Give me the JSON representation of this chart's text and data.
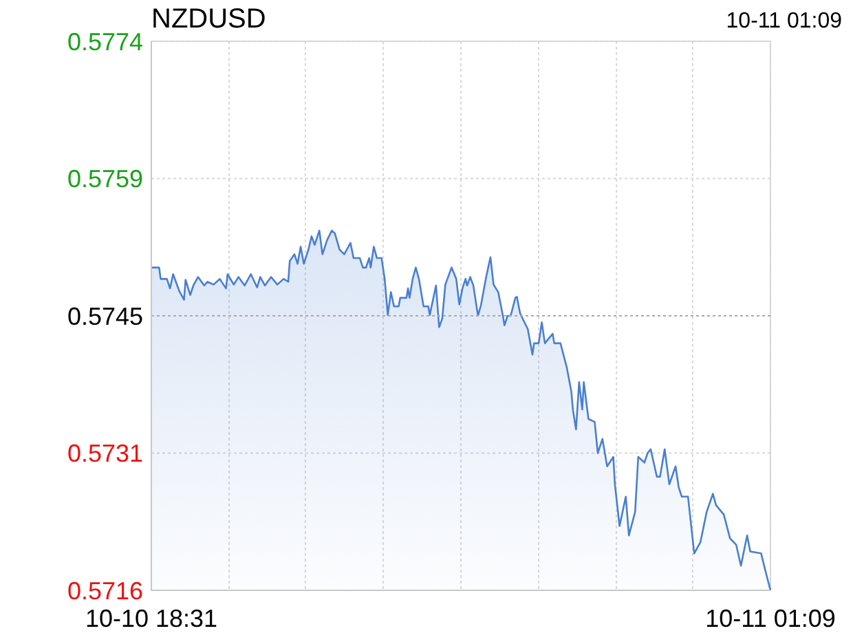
{
  "chart_data": {
    "type": "area",
    "title": "NZDUSD",
    "annotations": [
      "10-11 01:09"
    ],
    "x": [
      "--10-10T18:31",
      "--10-10T18:36",
      "--10-10T18:37",
      "--10-10T18:41",
      "--10-10T18:43",
      "--10-10T18:45",
      "--10-10T18:49",
      "--10-10T18:52",
      "--10-10T18:53",
      "--10-10T18:56",
      "--10-10T18:58",
      "--10-10T19:01",
      "--10-10T19:05",
      "--10-10T19:07",
      "--10-10T19:11",
      "--10-10T19:15",
      "--10-10T19:19",
      "--10-10T19:20",
      "--10-10T19:24",
      "--10-10T19:27",
      "--10-10T19:31",
      "--10-10T19:35",
      "--10-10T19:39",
      "--10-10T19:41",
      "--10-10T19:44",
      "--10-10T19:48",
      "--10-10T19:52",
      "--10-10T19:56",
      "--10-10T19:59",
      "--10-10T20:00",
      "--10-10T20:03",
      "--10-10T20:05",
      "--10-10T20:07",
      "--10-10T20:09",
      "--10-10T20:12",
      "--10-10T20:14",
      "--10-10T20:16",
      "--10-10T20:19",
      "--10-10T20:21",
      "--10-10T20:24",
      "--10-10T20:27",
      "--10-10T20:29",
      "--10-10T20:32",
      "--10-10T20:35",
      "--10-10T20:39",
      "--10-10T20:41",
      "--10-10T20:45",
      "--10-10T20:47",
      "--10-10T20:49",
      "--10-10T20:51",
      "--10-10T20:52",
      "--10-10T20:54",
      "--10-10T20:56",
      "--10-10T20:59",
      "--10-10T21:01",
      "--10-10T21:03",
      "--10-10T21:05",
      "--10-10T21:07",
      "--10-10T21:10",
      "--10-10T21:11",
      "--10-10T21:15",
      "--10-10T21:16",
      "--10-10T21:17",
      "--10-10T21:19",
      "--10-10T21:21",
      "--10-10T21:23",
      "--10-10T21:26",
      "--10-10T21:29",
      "--10-10T21:30",
      "--10-10T21:34",
      "--10-10T21:36",
      "--10-10T21:38",
      "--10-10T21:40",
      "--10-10T21:44",
      "--10-10T21:47",
      "--10-10T21:49",
      "--10-10T21:51",
      "--10-10T21:53",
      "--10-10T21:54",
      "--10-10T21:56",
      "--10-10T21:58",
      "--10-10T22:01",
      "--10-10T22:03",
      "--10-10T22:06",
      "--10-10T22:09",
      "--10-10T22:11",
      "--10-10T22:14",
      "--10-10T22:17",
      "--10-10T22:18",
      "--10-10T22:20",
      "--10-10T22:22",
      "--10-10T22:25",
      "--10-10T22:26",
      "--10-10T22:28",
      "--10-10T22:30",
      "--10-10T22:33",
      "--10-10T22:36",
      "--10-10T22:37",
      "--10-10T22:40",
      "--10-10T22:42",
      "--10-10T22:44",
      "--10-10T22:49",
      "--10-10T22:50",
      "--10-10T22:54",
      "--10-10T22:58",
      "--10-10T23:01",
      "--10-10T23:02",
      "--10-10T23:04",
      "--10-10T23:06",
      "--10-10T23:08",
      "--10-10T23:09",
      "--10-10T23:12",
      "--10-10T23:16",
      "--10-10T23:18",
      "--10-10T23:21",
      "--10-10T23:24",
      "--10-10T23:28",
      "--10-10T23:29",
      "--10-10T23:32",
      "--10-10T23:36",
      "--10-10T23:38",
      "--10-10T23:42",
      "--10-10T23:44",
      "--10-10T23:48",
      "--10-10T23:50",
      "--10-10T23:52",
      "--10-10T23:56",
      "--10-10T23:58",
      "--10-11T00:01",
      "--10-11T00:04",
      "--10-11T00:08",
      "--10-11T00:10",
      "--10-11T00:12",
      "--10-11T00:16",
      "--10-11T00:20",
      "--10-11T00:24",
      "--10-11T00:28",
      "--10-11T00:32",
      "--10-11T00:34",
      "--10-11T00:39",
      "--10-11T00:43",
      "--10-11T00:47",
      "--10-11T00:50",
      "--10-11T00:54",
      "--10-11T00:56",
      "--10-11T01:03",
      "--10-11T01:06",
      "--10-11T01:09"
    ],
    "series": [
      {
        "color": "#4a7fd0",
        "values": [
          0.57501,
          0.57501,
          0.57489,
          0.57489,
          0.57479,
          0.57494,
          0.57476,
          0.57467,
          0.57488,
          0.57472,
          0.57482,
          0.57491,
          0.57482,
          0.57486,
          0.57483,
          0.57489,
          0.57479,
          0.57494,
          0.57483,
          0.57491,
          0.57482,
          0.57494,
          0.5748,
          0.57491,
          0.57482,
          0.57491,
          0.57483,
          0.57489,
          0.57486,
          0.57508,
          0.57515,
          0.57505,
          0.57523,
          0.57505,
          0.5752,
          0.57534,
          0.57525,
          0.5754,
          0.57515,
          0.5753,
          0.5754,
          0.57537,
          0.5752,
          0.57515,
          0.57527,
          0.57511,
          0.57511,
          0.57501,
          0.57501,
          0.57511,
          0.57501,
          0.57523,
          0.57511,
          0.57511,
          0.57489,
          0.57451,
          0.57475,
          0.5746,
          0.5746,
          0.57469,
          0.57469,
          0.57479,
          0.57469,
          0.57489,
          0.57501,
          0.57489,
          0.5746,
          0.5746,
          0.57451,
          0.57482,
          0.57438,
          0.57447,
          0.57483,
          0.57501,
          0.57489,
          0.57462,
          0.57479,
          0.57489,
          0.57482,
          0.57491,
          0.57482,
          0.5745,
          0.57462,
          0.57489,
          0.57512,
          0.57483,
          0.57475,
          0.5745,
          0.5744,
          0.5745,
          0.5745,
          0.57469,
          0.5747,
          0.57453,
          0.57446,
          0.57436,
          0.57409,
          0.57421,
          0.57421,
          0.57443,
          0.57421,
          0.57431,
          0.57421,
          0.57421,
          0.57396,
          0.5737,
          0.57351,
          0.5733,
          0.5738,
          0.57351,
          0.5738,
          0.57341,
          0.57338,
          0.57305,
          0.5732,
          0.57291,
          0.57301,
          0.57272,
          0.57228,
          0.57259,
          0.57218,
          0.57243,
          0.57301,
          0.57295,
          0.57305,
          0.57309,
          0.5728,
          0.5728,
          0.57309,
          0.57272,
          0.57291,
          0.57269,
          0.57259,
          0.57259,
          0.57199,
          0.57211,
          0.57243,
          0.57262,
          0.5725,
          0.5724,
          0.57215,
          0.57208,
          0.57186,
          0.57218,
          0.57201,
          0.57199,
          0.57179,
          0.5716
        ]
      }
    ],
    "xlim": [
      "--10-10T18:31",
      "--10-11T01:09"
    ],
    "xticks": [
      {
        "value": "--10-10T18:31",
        "label": "10-10 18:31"
      },
      {
        "value": "--10-10T19:21",
        "label": null
      },
      {
        "value": "--10-10T20:10",
        "label": null
      },
      {
        "value": "--10-10T21:00",
        "label": null
      },
      {
        "value": "--10-10T21:50",
        "label": null
      },
      {
        "value": "--10-10T22:40",
        "label": null
      },
      {
        "value": "--10-10T23:30",
        "label": null
      },
      {
        "value": "--10-11T00:19",
        "label": null
      },
      {
        "value": "--10-11T01:09",
        "label": "10-11 01:09"
      }
    ],
    "ylim": [
      0.5716,
      0.5774
    ],
    "yticks": [
      0.5716,
      {
        "value": 0.57305,
        "label": "0.5731"
      },
      0.5745,
      {
        "value": 0.57595,
        "label": "0.5759"
      },
      0.5774
    ],
    "ref_lines": [
      {
        "axis": "y",
        "value": 0.5745,
        "color": "#aaaaaa",
        "line_style": "dotted"
      }
    ],
    "grid": true
  }
}
